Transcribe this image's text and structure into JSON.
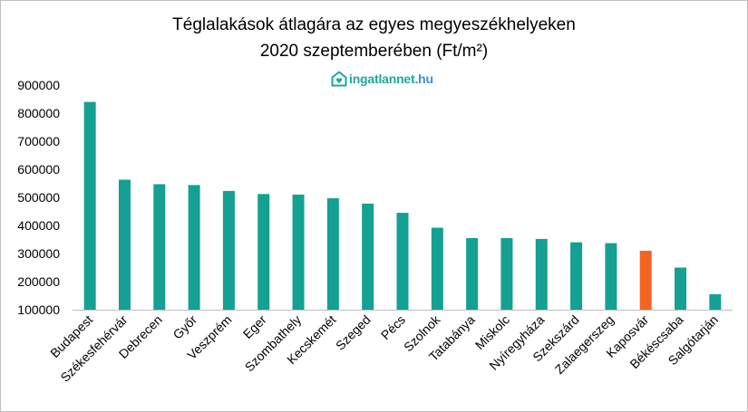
{
  "colors": {
    "bar": "#14a092",
    "highlight": "#f26522",
    "axis": "#bfbfbf"
  },
  "logo": {
    "icon": "house-heart-icon",
    "name": "ingatlannet",
    "tld": ".hu"
  },
  "chart_data": {
    "type": "bar",
    "title": "Téglalakások átlagára az egyes megyeszékhelyeken",
    "subtitle": "2020 szeptemberében  (Ft/m²)",
    "xlabel": "",
    "ylabel": "",
    "ylim": [
      100000,
      900000
    ],
    "yticks": [
      100000,
      200000,
      300000,
      400000,
      500000,
      600000,
      700000,
      800000,
      900000
    ],
    "ytick_labels": [
      "100000",
      "200000",
      "300000",
      "400000",
      "500000",
      "600000",
      "700000",
      "800000",
      "900000"
    ],
    "grid": false,
    "legend": "none",
    "categories": [
      "Budapest",
      "Székesfehérvár",
      "Debrecen",
      "Győr",
      "Veszprém",
      "Eger",
      "Szombathely",
      "Kecskemét",
      "Szeged",
      "Pécs",
      "Szolnok",
      "Tatabánya",
      "Miskolc",
      "Nyíregyháza",
      "Szekszárd",
      "Zalaegerszeg",
      "Kaposvár",
      "Békéscsaba",
      "Salgótarján"
    ],
    "values": [
      840000,
      563000,
      547000,
      544000,
      523000,
      512000,
      510000,
      497000,
      478000,
      445000,
      392000,
      355000,
      355000,
      352000,
      340000,
      337000,
      310000,
      250000,
      155000
    ],
    "highlight_category": "Kaposvár"
  }
}
